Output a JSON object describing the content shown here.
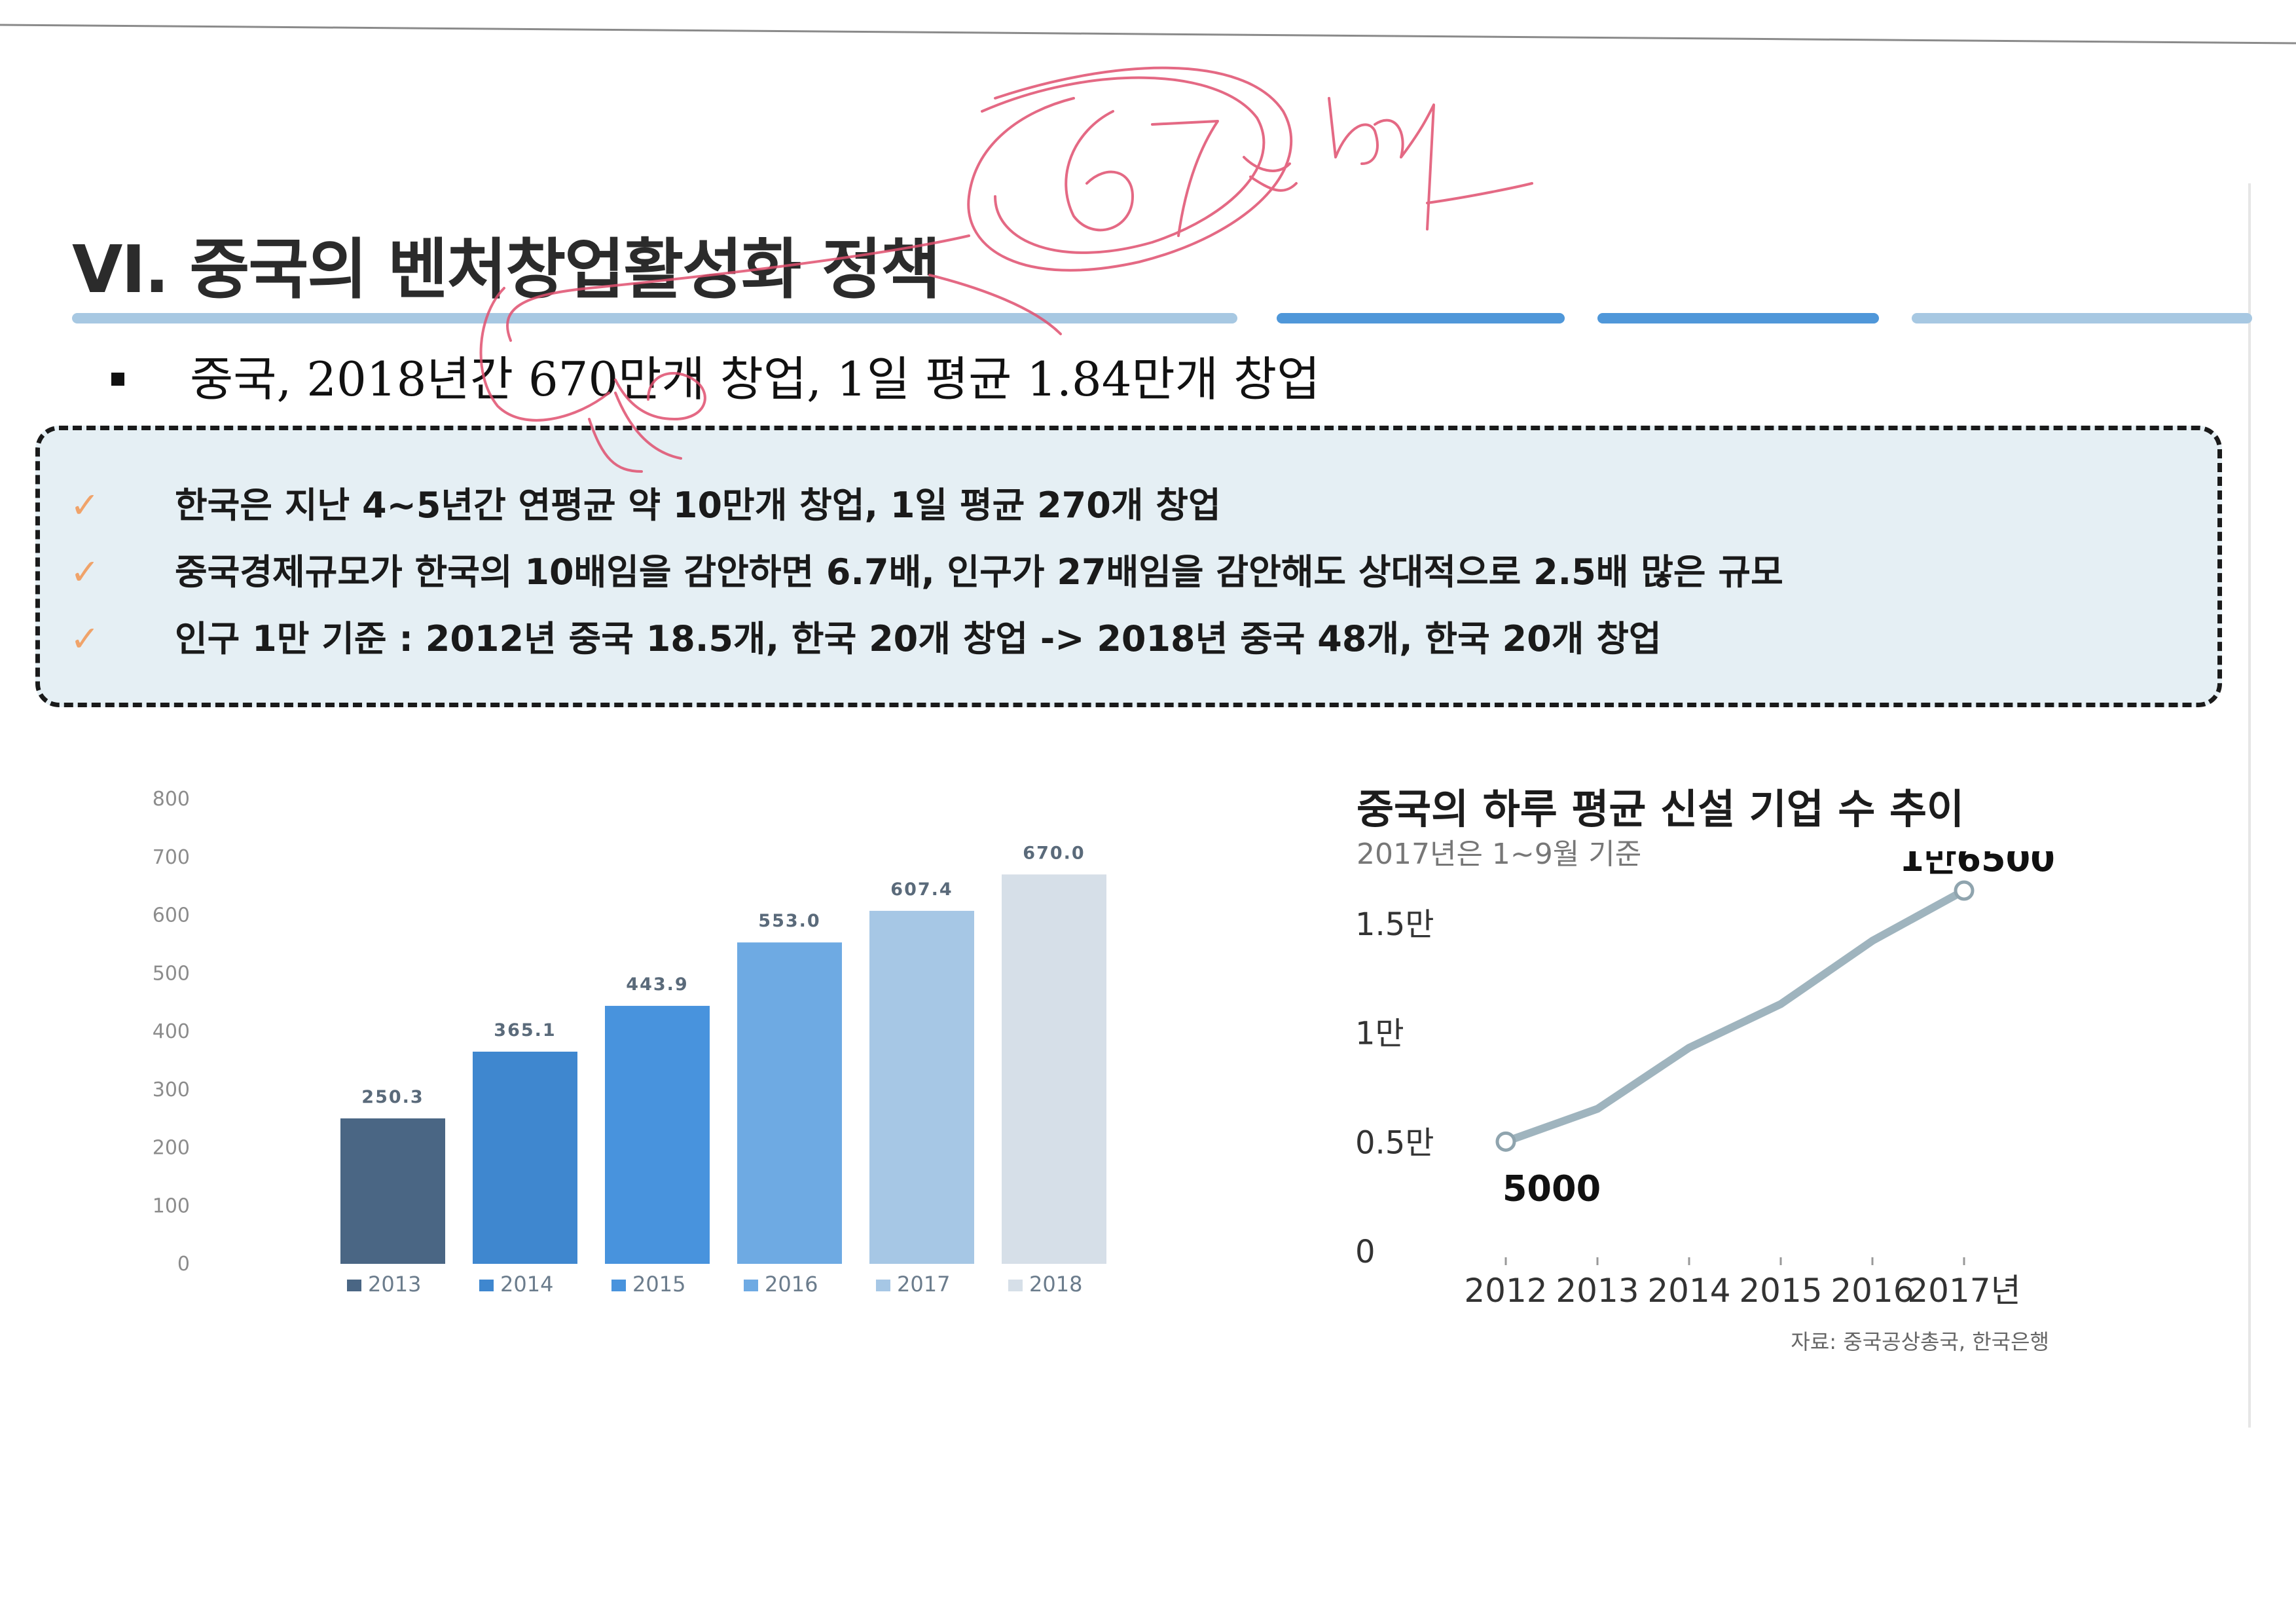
{
  "title": "VI. 중국의 벤처창업활성화 정책",
  "subtitle": "중국, 2018년간 670만개 창업, 1일 평균 1.84만개 창업",
  "notes": [
    "한국은 지난 4~5년간 연평균 약 10만개 창업, 1일 평균 270개 창업",
    "중국경제규모가 한국의 10배임을 감안하면 6.7배, 인구가 27배임을 감안해도 상대적으로 2.5배 많은 규모",
    "인구 1만 기준 : 2012년 중국 18.5개, 한국 20개 창업 -> 2018년 중국 48개, 한국 20개 창업"
  ],
  "note_check": "✓",
  "colors": {
    "title_bar": "#a7c8e2",
    "title_bar_accent": "#4f97d9",
    "note_bg": "#e5eff4",
    "check": "#f0a36a",
    "line": "#9fb4be",
    "annotation": "#e0506f"
  },
  "chart_data": [
    {
      "type": "bar",
      "categories": [
        "2013",
        "2014",
        "2015",
        "2016",
        "2017",
        "2018"
      ],
      "values": [
        250.3,
        365.1,
        443.9,
        553.0,
        607.4,
        670.0
      ],
      "value_labels": [
        "250.3",
        "365.1",
        "443.9",
        "553.0",
        "607.4",
        "670.0"
      ],
      "bar_colors": [
        "#4a6684",
        "#3f87cf",
        "#4893dd",
        "#6eaae3",
        "#a6c7e5",
        "#d6dfe8"
      ],
      "legend": [
        "2013",
        "2014",
        "2015",
        "2016",
        "2017",
        "2018"
      ],
      "legend_position": "bottom",
      "ylim": [
        0,
        800
      ],
      "yticks": [
        "0",
        "100",
        "200",
        "300",
        "400",
        "500",
        "600",
        "700",
        "800"
      ],
      "grid": false,
      "title": "",
      "xlabel": "",
      "ylabel": ""
    },
    {
      "type": "line",
      "title": "중국의 하루 평균 신설 기업 수 추이",
      "subtitle": "2017년은 1~9월 기준",
      "x": [
        "2012",
        "2013",
        "2014",
        "2015",
        "2016",
        "2017년"
      ],
      "values": [
        5000,
        6500,
        9300,
        11300,
        14200,
        16500
      ],
      "ylim": [
        0,
        15000
      ],
      "yticks": [
        "0",
        "0.5만",
        "1만",
        "1.5만"
      ],
      "annotations": [
        {
          "x": "2012",
          "label": "5000"
        },
        {
          "x": "2017년",
          "label": "1만6500"
        }
      ],
      "source": "자료: 중국공상총국, 한국은행",
      "grid": false
    }
  ]
}
